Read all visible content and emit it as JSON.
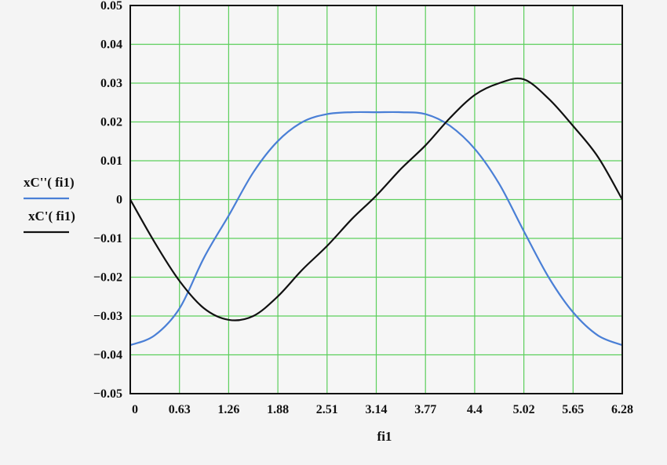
{
  "chart_data": {
    "type": "line",
    "title": "",
    "xlabel": "fi1",
    "ylabel": "",
    "xlim": [
      0,
      6.28
    ],
    "ylim": [
      -0.05,
      0.05
    ],
    "grid": true,
    "grid_color": "#5ccf5c",
    "legend_placement": "left",
    "x_ticks": [
      "0",
      "0.63",
      "1.26",
      "1.88",
      "2.51",
      "3.14",
      "3.77",
      "4.4",
      "5.02",
      "5.65",
      "6.28"
    ],
    "y_ticks": [
      "0.05",
      "0.04",
      "0.03",
      "0.02",
      "0.01",
      "0",
      "−0.01",
      "−0.02",
      "−0.03",
      "−0.04",
      "−0.05"
    ],
    "series": [
      {
        "name": "xC''( fi1)",
        "color": "#4a7fd6",
        "x": [
          0,
          0.31,
          0.63,
          0.94,
          1.26,
          1.57,
          1.88,
          2.2,
          2.51,
          2.83,
          3.14,
          3.46,
          3.77,
          4.08,
          4.4,
          4.71,
          5.02,
          5.34,
          5.65,
          5.97,
          6.28
        ],
        "y": [
          -0.0375,
          -0.035,
          -0.028,
          -0.015,
          -0.004,
          0.007,
          0.015,
          0.02,
          0.022,
          0.0225,
          0.0225,
          0.0225,
          0.022,
          0.019,
          0.013,
          0.004,
          -0.008,
          -0.02,
          -0.029,
          -0.035,
          -0.0375
        ]
      },
      {
        "name": "xC'( fi1)",
        "color": "#111111",
        "x": [
          0,
          0.31,
          0.63,
          0.94,
          1.26,
          1.57,
          1.88,
          2.2,
          2.51,
          2.83,
          3.14,
          3.46,
          3.77,
          4.08,
          4.4,
          4.71,
          5.02,
          5.34,
          5.65,
          5.97,
          6.28
        ],
        "y": [
          0,
          -0.011,
          -0.021,
          -0.028,
          -0.031,
          -0.03,
          -0.025,
          -0.018,
          -0.012,
          -0.005,
          0.001,
          0.008,
          0.014,
          0.021,
          0.027,
          0.03,
          0.031,
          0.026,
          0.019,
          0.011,
          0
        ]
      }
    ]
  }
}
